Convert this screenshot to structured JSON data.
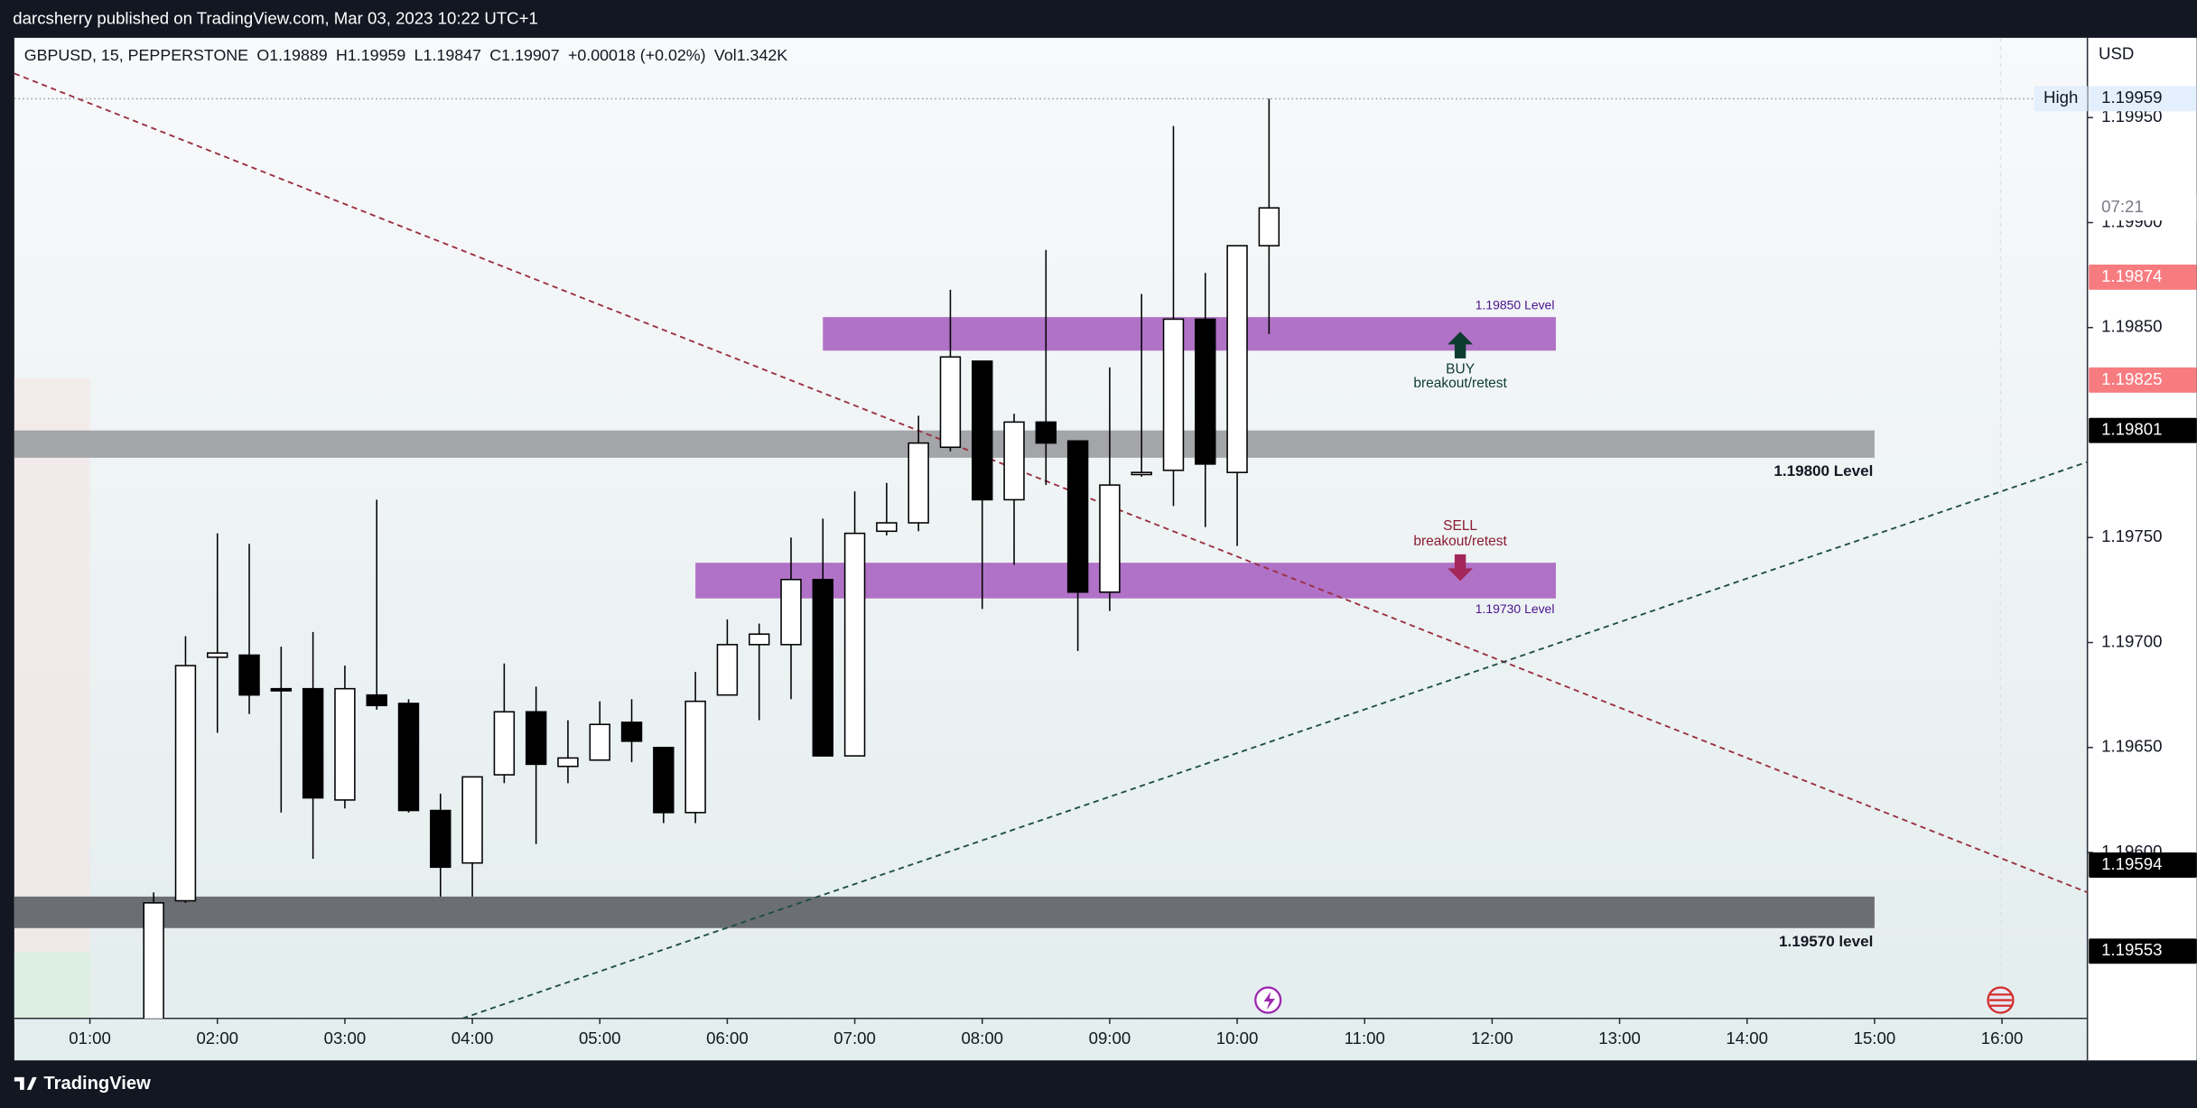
{
  "publisher": "darcsherry published on TradingView.com, Mar 03, 2023 10:22 UTC+1",
  "footer": "TradingView",
  "chart_data": {
    "type": "candlestick",
    "legend": [
      "GBPUSD, 15, PEPPERSTONE",
      "O1.19889",
      "H1.19959",
      "L1.19847",
      "C1.19907",
      "+0.00018 (+0.02%)",
      "Vol1.342K"
    ],
    "currency": "USD",
    "x": [
      1.5,
      1.75,
      2,
      2.25,
      2.5,
      2.75,
      3,
      3.25,
      3.5,
      3.75,
      4,
      4.25,
      4.5,
      4.75,
      5,
      5.25,
      5.5,
      5.75,
      6,
      6.25,
      6.5,
      6.75,
      7,
      7.25,
      7.5,
      7.75,
      8,
      8.25,
      8.5,
      8.75,
      9,
      9.25,
      9.5,
      9.75,
      10,
      10.25
    ],
    "open": [
      1.19513,
      1.19577,
      1.19693,
      1.19694,
      1.19678,
      1.19678,
      1.19625,
      1.19675,
      1.19671,
      1.1962,
      1.19595,
      1.19637,
      1.19667,
      1.19641,
      1.19644,
      1.19662,
      1.1965,
      1.19619,
      1.19675,
      1.19699,
      1.19699,
      1.1973,
      1.19646,
      1.19753,
      1.19757,
      1.19793,
      1.19834,
      1.19768,
      1.19805,
      1.19796,
      1.19724,
      1.1978,
      1.19782,
      1.19854,
      1.19781,
      1.19889
    ],
    "high": [
      1.19581,
      1.19703,
      1.19752,
      1.19747,
      1.19698,
      1.19705,
      1.19689,
      1.19768,
      1.19673,
      1.19628,
      1.19636,
      1.1969,
      1.19679,
      1.19663,
      1.19672,
      1.19673,
      1.1965,
      1.19686,
      1.19711,
      1.19709,
      1.1975,
      1.19759,
      1.19772,
      1.19776,
      1.19808,
      1.19868,
      1.19834,
      1.19809,
      1.19887,
      1.19796,
      1.19831,
      1.19866,
      1.19946,
      1.19876,
      1.19889,
      1.19959
    ],
    "low": [
      1.19509,
      1.19576,
      1.19657,
      1.19666,
      1.19619,
      1.19597,
      1.19621,
      1.19668,
      1.19619,
      1.19579,
      1.19579,
      1.19633,
      1.19604,
      1.19633,
      1.19644,
      1.19643,
      1.19614,
      1.19614,
      1.19675,
      1.19663,
      1.19673,
      1.19646,
      1.19646,
      1.19751,
      1.19753,
      1.19791,
      1.19716,
      1.19737,
      1.19775,
      1.19696,
      1.19715,
      1.19779,
      1.19765,
      1.19755,
      1.19746,
      1.19847
    ],
    "close": [
      1.19576,
      1.19689,
      1.19695,
      1.19675,
      1.19677,
      1.19626,
      1.19678,
      1.1967,
      1.1962,
      1.19593,
      1.19636,
      1.19667,
      1.19642,
      1.19645,
      1.19661,
      1.19653,
      1.19619,
      1.19672,
      1.19699,
      1.19704,
      1.1973,
      1.19646,
      1.19752,
      1.19757,
      1.19795,
      1.19836,
      1.19768,
      1.19805,
      1.19795,
      1.19724,
      1.19775,
      1.19781,
      1.19854,
      1.19785,
      1.19889,
      1.19907
    ],
    "up_color": "#ffffff",
    "down_color": "#000000",
    "xlim": [
      0.407,
      16.67
    ],
    "xticks": [
      {
        "value": 1,
        "label": "01:00"
      },
      {
        "value": 2,
        "label": "02:00"
      },
      {
        "value": 3,
        "label": "03:00"
      },
      {
        "value": 4,
        "label": "04:00"
      },
      {
        "value": 5,
        "label": "05:00"
      },
      {
        "value": 6,
        "label": "06:00"
      },
      {
        "value": 7,
        "label": "07:00"
      },
      {
        "value": 8,
        "label": "08:00"
      },
      {
        "value": 9,
        "label": "09:00"
      },
      {
        "value": 10,
        "label": "10:00"
      },
      {
        "value": 11,
        "label": "11:00"
      },
      {
        "value": 12,
        "label": "12:00"
      },
      {
        "value": 13,
        "label": "13:00"
      },
      {
        "value": 14,
        "label": "14:00"
      },
      {
        "value": 15,
        "label": "15:00"
      },
      {
        "value": 16,
        "label": "16:00"
      }
    ],
    "ylim": [
      1.19521,
      1.19988
    ],
    "yticks": [
      {
        "value": 1.196,
        "label": "1.19600"
      },
      {
        "value": 1.1965,
        "label": "1.19650"
      },
      {
        "value": 1.197,
        "label": "1.19700"
      },
      {
        "value": 1.1975,
        "label": "1.19750"
      },
      {
        "value": 1.1985,
        "label": "1.19850"
      },
      {
        "value": 1.199,
        "label": "1.19900"
      },
      {
        "value": 1.1995,
        "label": "1.19950"
      }
    ],
    "grid": false,
    "zones": [
      {
        "label": "1.19850 Level",
        "top": 1.19855,
        "bottom": 1.19839,
        "start": 6.75,
        "end": 12.5,
        "color": "#b072c6"
      },
      {
        "label": "1.19800 Level",
        "top": 1.19801,
        "bottom": 1.19788,
        "start": 0.407,
        "end": 15,
        "color": "#a4a5a8"
      },
      {
        "label": "1.19730 Level",
        "top": 1.19738,
        "bottom": 1.19721,
        "start": 5.75,
        "end": 12.5,
        "color": "#b072c6"
      },
      {
        "label": "1.19570 level",
        "top": 1.19579,
        "bottom": 1.19564,
        "start": 0.407,
        "end": 15,
        "color": "#6b6e73"
      }
    ],
    "signals": [
      {
        "label": "BUY",
        "text": "breakout/retest",
        "direction": "up",
        "time": 11.75,
        "price": 1.1985,
        "color": "#0d3b30"
      },
      {
        "label": "SELL",
        "text": "breakout/retest",
        "direction": "down",
        "time": 11.75,
        "price": 1.1973,
        "color": "#8a1a32"
      }
    ],
    "trendlines": [
      {
        "color": "#9b2f40",
        "points": [
          [
            0.407,
            1.19971
          ],
          [
            16.67,
            1.19581
          ]
        ]
      },
      {
        "color": "#1f4d45",
        "points": [
          [
            3.923,
            1.19521
          ],
          [
            16.67,
            1.19786
          ]
        ]
      }
    ],
    "high_label": {
      "label": "High",
      "value": 1.19959
    },
    "countdown": "07:21",
    "price_labels": [
      {
        "value": 1.19874,
        "color": "#f77c80"
      },
      {
        "value": 1.19825,
        "color": "#f77c80"
      },
      {
        "value": 1.19801,
        "color": "#000000"
      },
      {
        "value": 1.19594,
        "color": "#000000"
      },
      {
        "value": 1.19553,
        "color": "#000000"
      }
    ]
  }
}
